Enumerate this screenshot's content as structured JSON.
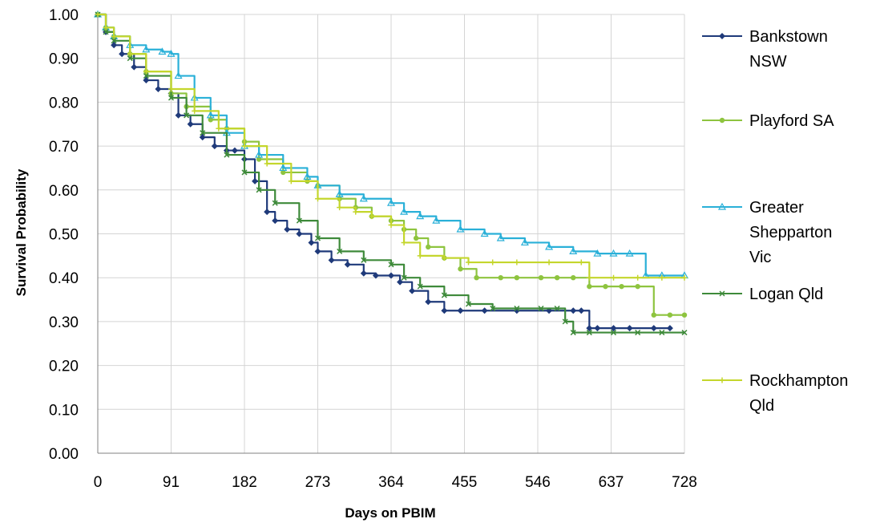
{
  "chart_data": {
    "type": "line",
    "title": "",
    "xlabel": "Days on PBIM",
    "ylabel": "Survival Probability",
    "xlim": [
      0,
      728
    ],
    "ylim": [
      0,
      1
    ],
    "x_ticks": [
      "0",
      "91",
      "182",
      "273",
      "364",
      "455",
      "546",
      "637",
      "728"
    ],
    "y_ticks": [
      "0.00",
      "0.10",
      "0.20",
      "0.30",
      "0.40",
      "0.50",
      "0.60",
      "0.70",
      "0.80",
      "0.90",
      "1.00"
    ],
    "grid": true,
    "legend_position": "right",
    "series": [
      {
        "name": "Bankstown NSW",
        "legend_lines": [
          "Bankstown",
          "NSW"
        ],
        "color": "#1f3a7a",
        "marker": "diamond",
        "x": [
          0,
          10,
          20,
          30,
          45,
          60,
          75,
          91,
          100,
          115,
          130,
          145,
          160,
          170,
          182,
          195,
          210,
          220,
          235,
          250,
          265,
          273,
          290,
          310,
          330,
          345,
          364,
          375,
          390,
          410,
          430,
          450,
          480,
          520,
          560,
          590,
          600,
          610,
          620,
          640,
          660,
          690,
          710
        ],
        "y": [
          1.0,
          0.96,
          0.93,
          0.91,
          0.88,
          0.85,
          0.83,
          0.82,
          0.77,
          0.75,
          0.72,
          0.7,
          0.69,
          0.69,
          0.67,
          0.62,
          0.55,
          0.53,
          0.51,
          0.5,
          0.48,
          0.46,
          0.44,
          0.43,
          0.41,
          0.405,
          0.405,
          0.39,
          0.37,
          0.345,
          0.325,
          0.325,
          0.325,
          0.325,
          0.325,
          0.325,
          0.325,
          0.285,
          0.285,
          0.285,
          0.285,
          0.285,
          0.285
        ]
      },
      {
        "name": "Playford SA",
        "legend_lines": [
          "Playford SA"
        ],
        "color": "#8ec43f",
        "marker": "circle",
        "x": [
          0,
          10,
          20,
          40,
          60,
          91,
          110,
          140,
          160,
          182,
          200,
          230,
          260,
          273,
          300,
          320,
          340,
          364,
          380,
          395,
          410,
          430,
          450,
          470,
          500,
          520,
          550,
          570,
          590,
          610,
          630,
          650,
          670,
          690,
          710,
          728
        ],
        "y": [
          1.0,
          0.97,
          0.95,
          0.91,
          0.87,
          0.82,
          0.79,
          0.76,
          0.74,
          0.71,
          0.67,
          0.64,
          0.62,
          0.61,
          0.58,
          0.56,
          0.54,
          0.53,
          0.51,
          0.49,
          0.47,
          0.445,
          0.42,
          0.4,
          0.4,
          0.4,
          0.4,
          0.4,
          0.4,
          0.38,
          0.38,
          0.38,
          0.38,
          0.315,
          0.315,
          0.315
        ]
      },
      {
        "name": "Greater Shepparton Vic",
        "legend_lines": [
          "Greater",
          "Shepparton",
          "Vic"
        ],
        "color": "#2ab0d8",
        "marker": "triangle",
        "x": [
          0,
          10,
          20,
          40,
          60,
          80,
          91,
          100,
          120,
          140,
          160,
          182,
          200,
          230,
          260,
          273,
          300,
          330,
          364,
          380,
          400,
          420,
          450,
          480,
          500,
          530,
          560,
          590,
          620,
          640,
          660,
          680,
          700,
          728
        ],
        "y": [
          1.0,
          0.97,
          0.95,
          0.93,
          0.92,
          0.915,
          0.91,
          0.86,
          0.81,
          0.77,
          0.73,
          0.7,
          0.68,
          0.65,
          0.63,
          0.61,
          0.59,
          0.58,
          0.57,
          0.55,
          0.54,
          0.53,
          0.51,
          0.5,
          0.49,
          0.48,
          0.47,
          0.46,
          0.455,
          0.455,
          0.455,
          0.405,
          0.405,
          0.405
        ]
      },
      {
        "name": "Logan Qld",
        "legend_lines": [
          "Logan Qld"
        ],
        "color": "#3e8a3a",
        "marker": "x",
        "x": [
          0,
          10,
          20,
          40,
          60,
          91,
          110,
          130,
          160,
          182,
          200,
          220,
          250,
          273,
          300,
          330,
          364,
          380,
          400,
          430,
          460,
          490,
          520,
          550,
          570,
          580,
          590,
          610,
          640,
          670,
          700,
          728
        ],
        "y": [
          1.0,
          0.96,
          0.94,
          0.9,
          0.86,
          0.81,
          0.77,
          0.73,
          0.68,
          0.64,
          0.6,
          0.57,
          0.53,
          0.49,
          0.46,
          0.44,
          0.43,
          0.4,
          0.38,
          0.36,
          0.34,
          0.33,
          0.33,
          0.33,
          0.33,
          0.3,
          0.275,
          0.275,
          0.275,
          0.275,
          0.275,
          0.275
        ]
      },
      {
        "name": "Rockhampton Qld",
        "legend_lines": [
          "Rockhampton",
          "Qld"
        ],
        "color": "#c4d62c",
        "marker": "plus",
        "x": [
          0,
          10,
          20,
          40,
          60,
          91,
          120,
          150,
          182,
          210,
          240,
          273,
          300,
          320,
          340,
          364,
          380,
          400,
          430,
          460,
          490,
          520,
          560,
          600,
          610,
          640,
          670,
          700,
          728
        ],
        "y": [
          1.0,
          0.97,
          0.95,
          0.91,
          0.87,
          0.83,
          0.78,
          0.74,
          0.7,
          0.66,
          0.62,
          0.58,
          0.56,
          0.55,
          0.54,
          0.52,
          0.48,
          0.45,
          0.445,
          0.435,
          0.435,
          0.435,
          0.435,
          0.435,
          0.4,
          0.4,
          0.4,
          0.4,
          0.4
        ]
      }
    ]
  }
}
